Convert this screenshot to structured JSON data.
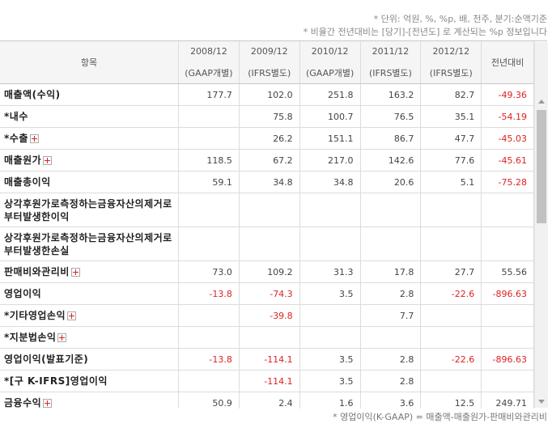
{
  "notes": {
    "unit": "* 단위: 억원, %, %p, 배, 천주, 분기:순액기준",
    "ratio": "* 비율간 전년대비는 [당기]-[전년도] 로 계산되는 %p 정보입니다"
  },
  "header": {
    "item": "항목",
    "change": "전년대비",
    "periods": [
      {
        "year": "2008/12",
        "standard": "(GAAP개별)"
      },
      {
        "year": "2009/12",
        "standard": "(IFRS별도)"
      },
      {
        "year": "2010/12",
        "standard": "(GAAP개별)"
      },
      {
        "year": "2011/12",
        "standard": "(IFRS별도)"
      },
      {
        "year": "2012/12",
        "standard": "(IFRS별도)"
      }
    ]
  },
  "rows": [
    {
      "label": "매출액(수익)",
      "values": [
        "177.7",
        "102.0",
        "251.8",
        "163.2",
        "82.7"
      ],
      "change": "-49.36"
    },
    {
      "label": "*내수",
      "values": [
        "",
        "75.8",
        "100.7",
        "76.5",
        "35.1"
      ],
      "change": "-54.19"
    },
    {
      "label": "*수출",
      "values": [
        "",
        "26.2",
        "151.1",
        "86.7",
        "47.7"
      ],
      "change": "-45.03"
    },
    {
      "label": "매출원가",
      "values": [
        "118.5",
        "67.2",
        "217.0",
        "142.6",
        "77.6"
      ],
      "change": "-45.61"
    },
    {
      "label": "매출총이익",
      "values": [
        "59.1",
        "34.8",
        "34.8",
        "20.6",
        "5.1"
      ],
      "change": "-75.28"
    },
    {
      "label": "상각후원가로측정하는금융자산의제거로부터발생한이익",
      "values": [
        "",
        "",
        "",
        "",
        ""
      ],
      "change": ""
    },
    {
      "label": "상각후원가로측정하는금융자산의제거로부터발생한손실",
      "values": [
        "",
        "",
        "",
        "",
        ""
      ],
      "change": ""
    },
    {
      "label": "판매비와관리비",
      "values": [
        "73.0",
        "109.2",
        "31.3",
        "17.8",
        "27.7"
      ],
      "change": "55.56"
    },
    {
      "label": "영업이익",
      "values": [
        "-13.8",
        "-74.3",
        "3.5",
        "2.8",
        "-22.6"
      ],
      "change": "-896.63"
    },
    {
      "label": "*기타영업손익",
      "values": [
        "",
        "-39.8",
        "",
        "7.7",
        ""
      ],
      "change": ""
    },
    {
      "label": "*지분법손익",
      "values": [
        "",
        "",
        "",
        "",
        ""
      ],
      "change": ""
    },
    {
      "label": "영업이익(발표기준)",
      "values": [
        "-13.8",
        "-114.1",
        "3.5",
        "2.8",
        "-22.6"
      ],
      "change": "-896.63"
    },
    {
      "label": "*[구 K-IFRS]영업이익",
      "values": [
        "",
        "-114.1",
        "3.5",
        "2.8",
        ""
      ],
      "change": ""
    },
    {
      "label": "금융수익",
      "values": [
        "50.9",
        "2.4",
        "1.6",
        "3.6",
        "12.5"
      ],
      "change": "249.71"
    }
  ],
  "formula": "* 영업이익(K-GAAP) = 매출액-매출원가-판매비와관리비",
  "colors": {
    "negative": "#dd2222",
    "header_bg": "#f5f5f5",
    "border": "#dcdcdc",
    "plus_icon": "#dd2222"
  }
}
